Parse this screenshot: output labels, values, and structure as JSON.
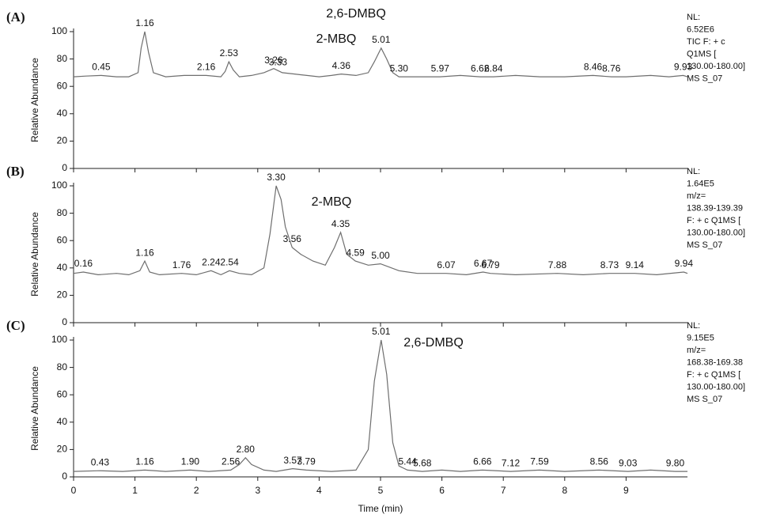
{
  "chart_data": [
    {
      "type": "line",
      "panel": "(A)",
      "ylabel": "Relative Abundance",
      "color": "#6e6e6e",
      "xlim": [
        0,
        10
      ],
      "xticks": [
        0,
        1,
        2,
        3,
        4,
        5,
        6,
        7,
        8,
        9
      ],
      "show_xtick_labels": false,
      "ylim": [
        0,
        100
      ],
      "yticks": [
        0,
        20,
        40,
        60,
        80,
        100
      ],
      "x": [
        0,
        0.2,
        0.45,
        0.7,
        0.9,
        1.05,
        1.1,
        1.16,
        1.22,
        1.3,
        1.5,
        1.8,
        2.16,
        2.4,
        2.47,
        2.53,
        2.6,
        2.7,
        2.9,
        3.1,
        3.26,
        3.4,
        3.6,
        3.8,
        4.0,
        4.2,
        4.36,
        4.6,
        4.8,
        4.9,
        5.01,
        5.1,
        5.2,
        5.3,
        5.6,
        5.97,
        6.3,
        6.62,
        6.84,
        7.2,
        7.6,
        8.0,
        8.46,
        8.76,
        9.0,
        9.4,
        9.7,
        9.93,
        10
      ],
      "values": [
        67,
        67.5,
        68,
        67,
        67,
        70,
        88,
        100,
        85,
        70,
        67,
        68,
        68,
        67,
        71,
        78,
        72,
        67,
        68,
        70,
        73,
        70,
        69,
        68,
        67,
        68,
        69,
        68,
        70,
        78,
        88,
        80,
        70,
        67,
        67,
        67,
        68,
        67,
        67,
        68,
        67,
        67,
        68,
        67,
        67,
        68,
        67,
        68,
        67
      ],
      "peaks": [
        {
          "x": 0.45,
          "label": "0.45"
        },
        {
          "x": 1.16,
          "label": "1.16"
        },
        {
          "x": 2.16,
          "label": "2.16"
        },
        {
          "x": 2.53,
          "label": "2.53"
        },
        {
          "x": 3.26,
          "label": "3.26"
        },
        {
          "x": 3.33,
          "label": "3.33"
        },
        {
          "x": 4.36,
          "label": "4.36"
        },
        {
          "x": 5.01,
          "label": "5.01"
        },
        {
          "x": 5.3,
          "label": "5.30"
        },
        {
          "x": 5.97,
          "label": "5.97"
        },
        {
          "x": 6.62,
          "label": "6.62"
        },
        {
          "x": 6.84,
          "label": "6.84"
        },
        {
          "x": 8.46,
          "label": "8.46"
        },
        {
          "x": 8.76,
          "label": "8.76"
        },
        {
          "x": 9.93,
          "label": "9.93"
        }
      ],
      "annotations": [
        "2,6-DMBQ",
        "2-MBQ"
      ],
      "info": [
        "NL:",
        "6.52E6",
        "TIC F: + c",
        "Q1MS [",
        "130.00-180.00]",
        "MS S_07"
      ]
    },
    {
      "type": "line",
      "panel": "(B)",
      "ylabel": "Relative Abundance",
      "color": "#6e6e6e",
      "xlim": [
        0,
        10
      ],
      "xticks": [
        0,
        1,
        2,
        3,
        4,
        5,
        6,
        7,
        8,
        9
      ],
      "show_xtick_labels": false,
      "ylim": [
        0,
        100
      ],
      "yticks": [
        0,
        20,
        40,
        60,
        80,
        100
      ],
      "x": [
        0,
        0.16,
        0.4,
        0.7,
        0.9,
        1.08,
        1.16,
        1.24,
        1.4,
        1.76,
        2.0,
        2.24,
        2.4,
        2.54,
        2.7,
        2.9,
        3.1,
        3.2,
        3.3,
        3.38,
        3.45,
        3.56,
        3.7,
        3.9,
        4.1,
        4.25,
        4.35,
        4.45,
        4.59,
        4.8,
        5.0,
        5.3,
        5.6,
        6.07,
        6.4,
        6.67,
        6.79,
        7.2,
        7.88,
        8.3,
        8.73,
        9.14,
        9.5,
        9.94,
        10
      ],
      "values": [
        36,
        37,
        35,
        36,
        35,
        38,
        45,
        37,
        35,
        36,
        35,
        38,
        35,
        38,
        36,
        35,
        40,
        65,
        100,
        90,
        70,
        55,
        50,
        45,
        42,
        55,
        66,
        50,
        45,
        42,
        43,
        38,
        36,
        36,
        35,
        37,
        36,
        35,
        36,
        35,
        36,
        36,
        35,
        37,
        36
      ],
      "peaks": [
        {
          "x": 0.16,
          "label": "0.16"
        },
        {
          "x": 1.16,
          "label": "1.16"
        },
        {
          "x": 1.76,
          "label": "1.76"
        },
        {
          "x": 2.24,
          "label": "2.24"
        },
        {
          "x": 2.54,
          "label": "2.54"
        },
        {
          "x": 3.3,
          "label": "3.30"
        },
        {
          "x": 3.56,
          "label": "3.56"
        },
        {
          "x": 4.35,
          "label": "4.35"
        },
        {
          "x": 4.59,
          "label": "4.59"
        },
        {
          "x": 5.0,
          "label": "5.00"
        },
        {
          "x": 6.07,
          "label": "6.07"
        },
        {
          "x": 6.67,
          "label": "6.67"
        },
        {
          "x": 6.79,
          "label": "6.79"
        },
        {
          "x": 7.88,
          "label": "7.88"
        },
        {
          "x": 8.73,
          "label": "8.73"
        },
        {
          "x": 9.14,
          "label": "9.14"
        },
        {
          "x": 9.94,
          "label": "9.94"
        }
      ],
      "annotations": [
        "2-MBQ"
      ],
      "info": [
        "NL:",
        "1.64E5",
        "m/z=",
        "138.39-139.39",
        "F: + c Q1MS [",
        "130.00-180.00]",
        "MS S_07"
      ]
    },
    {
      "type": "line",
      "panel": "(C)",
      "ylabel": "Relative Abundance",
      "xlabel": "Time (min)",
      "color": "#6e6e6e",
      "xlim": [
        0,
        10
      ],
      "xticks": [
        0,
        1,
        2,
        3,
        4,
        5,
        6,
        7,
        8,
        9
      ],
      "show_xtick_labels": true,
      "ylim": [
        0,
        100
      ],
      "yticks": [
        0,
        20,
        40,
        60,
        80,
        100
      ],
      "x": [
        0,
        0.43,
        0.8,
        1.16,
        1.5,
        1.9,
        2.2,
        2.56,
        2.7,
        2.8,
        2.9,
        3.1,
        3.3,
        3.57,
        3.79,
        4.2,
        4.6,
        4.8,
        4.9,
        5.01,
        5.1,
        5.2,
        5.3,
        5.44,
        5.68,
        6.0,
        6.3,
        6.66,
        7.12,
        7.59,
        8.0,
        8.56,
        9.03,
        9.4,
        9.8,
        10
      ],
      "values": [
        4,
        4.5,
        4,
        5,
        4,
        5,
        4,
        5,
        9,
        14,
        9,
        5,
        4,
        6,
        5,
        4,
        5,
        20,
        70,
        100,
        75,
        25,
        8,
        5,
        4,
        5,
        4,
        5,
        4,
        5,
        4,
        5,
        4,
        5,
        4,
        4
      ],
      "peaks": [
        {
          "x": 0.43,
          "label": "0.43"
        },
        {
          "x": 1.16,
          "label": "1.16"
        },
        {
          "x": 1.9,
          "label": "1.90"
        },
        {
          "x": 2.56,
          "label": "2.56"
        },
        {
          "x": 2.8,
          "label": "2.80"
        },
        {
          "x": 3.57,
          "label": "3.57"
        },
        {
          "x": 3.79,
          "label": "3.79"
        },
        {
          "x": 5.01,
          "label": "5.01"
        },
        {
          "x": 5.44,
          "label": "5.44"
        },
        {
          "x": 5.68,
          "label": "5.68"
        },
        {
          "x": 6.66,
          "label": "6.66"
        },
        {
          "x": 7.12,
          "label": "7.12"
        },
        {
          "x": 7.59,
          "label": "7.59"
        },
        {
          "x": 8.56,
          "label": "8.56"
        },
        {
          "x": 9.03,
          "label": "9.03"
        },
        {
          "x": 9.8,
          "label": "9.80"
        }
      ],
      "annotations": [
        "2,6-DMBQ"
      ],
      "info": [
        "NL:",
        "9.15E5",
        "m/z=",
        "168.38-169.38",
        "F: + c Q1MS [",
        "130.00-180.00]",
        "MS S_07"
      ]
    }
  ]
}
